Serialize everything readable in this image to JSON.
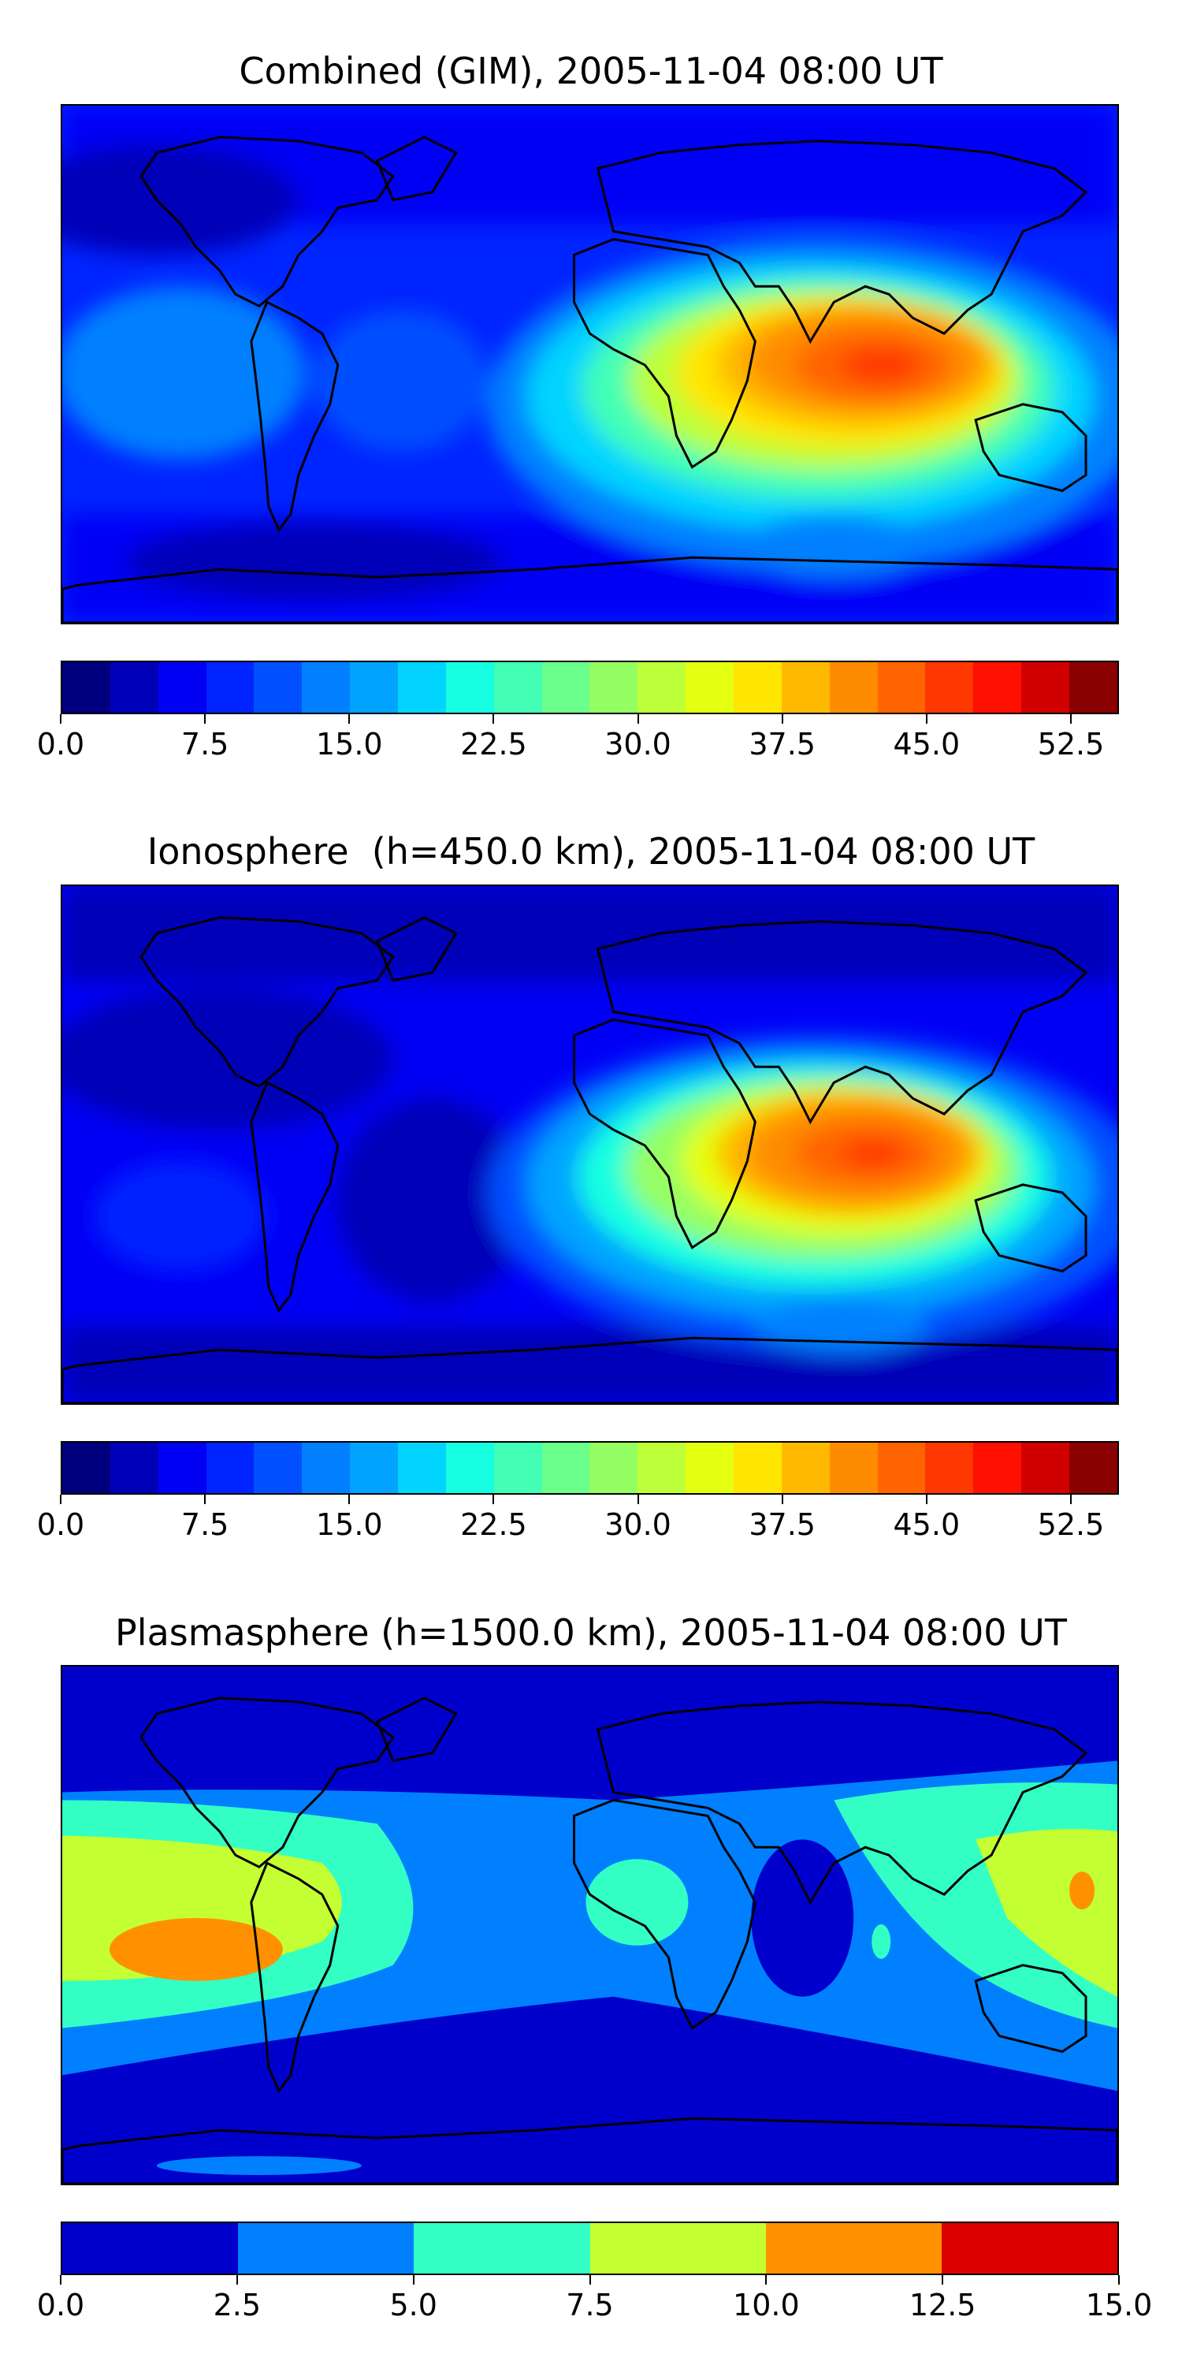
{
  "chart_data": [
    {
      "type": "heatmap",
      "title": "Combined (GIM), 2005-11-04 08:00 UT",
      "colorbar": {
        "levels": [
          0,
          2.5,
          5,
          7.5,
          10,
          12.5,
          15,
          17.5,
          20,
          22.5,
          25,
          27.5,
          30,
          32.5,
          35,
          37.5,
          40,
          42.5,
          45,
          47.5,
          50,
          52.5,
          55
        ],
        "ticks": [
          0.0,
          7.5,
          15.0,
          22.5,
          30.0,
          37.5,
          45.0,
          52.5
        ],
        "tick_labels": [
          "0.0",
          "7.5",
          "15.0",
          "22.5",
          "30.0",
          "37.5",
          "45.0",
          "52.5"
        ],
        "range": [
          0,
          55
        ],
        "colors": [
          "#00007f",
          "#0000b8",
          "#0000f5",
          "#0024ff",
          "#0050ff",
          "#0080ff",
          "#00a4ff",
          "#00d4ff",
          "#16ffe1",
          "#42ffb5",
          "#6bff8c",
          "#94ff63",
          "#bdff39",
          "#e5ff10",
          "#ffe600",
          "#ffb900",
          "#ff8c00",
          "#ff6400",
          "#ff3700",
          "#ff0f00",
          "#d10000",
          "#8b0000"
        ]
      }
    },
    {
      "type": "heatmap",
      "title": "Ionosphere  (h=450.0 km), 2005-11-04 08:00 UT",
      "colorbar": {
        "levels": [
          0,
          2.5,
          5,
          7.5,
          10,
          12.5,
          15,
          17.5,
          20,
          22.5,
          25,
          27.5,
          30,
          32.5,
          35,
          37.5,
          40,
          42.5,
          45,
          47.5,
          50,
          52.5,
          55
        ],
        "ticks": [
          0.0,
          7.5,
          15.0,
          22.5,
          30.0,
          37.5,
          45.0,
          52.5
        ],
        "tick_labels": [
          "0.0",
          "7.5",
          "15.0",
          "22.5",
          "30.0",
          "37.5",
          "45.0",
          "52.5"
        ],
        "range": [
          0,
          55
        ],
        "colors": [
          "#00007f",
          "#0000b8",
          "#0000f5",
          "#0024ff",
          "#0050ff",
          "#0080ff",
          "#00a4ff",
          "#00d4ff",
          "#16ffe1",
          "#42ffb5",
          "#6bff8c",
          "#94ff63",
          "#bdff39",
          "#e5ff10",
          "#ffe600",
          "#ffb900",
          "#ff8c00",
          "#ff6400",
          "#ff3700",
          "#ff0f00",
          "#d10000",
          "#8b0000"
        ]
      }
    },
    {
      "type": "heatmap",
      "title": "Plasmasphere (h=1500.0 km), 2005-11-04 08:00 UT",
      "colorbar": {
        "levels": [
          0,
          2.5,
          5,
          7.5,
          10,
          12.5,
          15
        ],
        "ticks": [
          0.0,
          2.5,
          5.0,
          7.5,
          10.0,
          12.5,
          15.0
        ],
        "tick_labels": [
          "0.0",
          "2.5",
          "5.0",
          "7.5",
          "10.0",
          "12.5",
          "15.0"
        ],
        "range": [
          0,
          15
        ],
        "colors": [
          "#0000cd",
          "#0080ff",
          "#33ffc4",
          "#c4ff33",
          "#ff9100",
          "#dd0000"
        ]
      }
    }
  ]
}
